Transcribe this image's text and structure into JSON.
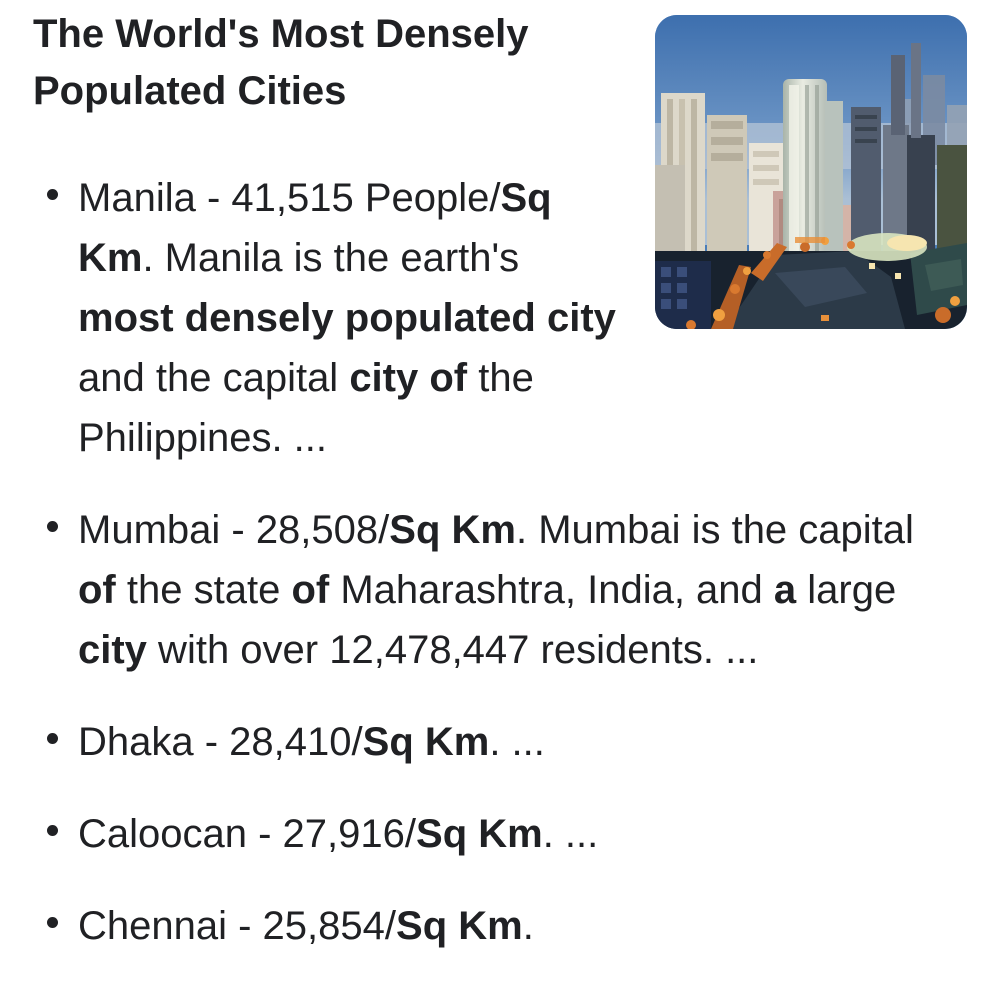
{
  "page": {
    "background": "#ffffff",
    "text_color": "#202124"
  },
  "title": {
    "text": "The World's Most Densely Populated Cities"
  },
  "image": {
    "alt": "Aerial photo of a dense city skyline at dusk",
    "palette": {
      "sky_top": "#3d6fae",
      "sky_mid": "#6f97c6",
      "horizon": "#aabfd5",
      "building_light": "#e3ddcf",
      "building_beige": "#cfc9b8",
      "building_glass": "#c3ccc3",
      "building_mid": "#97a5b8",
      "building_dark": "#3f4a5c",
      "midrise_pink": "#c9a29a",
      "foreground_dark": "#18222e",
      "roof_slate": "#2c3a48",
      "roof_teal": "#2f4a4a",
      "lights_orange": "#d9792f",
      "lights_bright": "#f0a040",
      "lights_warm": "#f6e5b0",
      "lit_field": "#d8e4c0"
    }
  },
  "list": {
    "items": [
      {
        "segments": [
          {
            "text": "Manila - 41,515 People/",
            "bold": false
          },
          {
            "text": "Sq Km",
            "bold": true
          },
          {
            "text": ". Manila is the earth's ",
            "bold": false
          },
          {
            "text": "most densely populated city",
            "bold": true
          },
          {
            "text": " and the capital ",
            "bold": false
          },
          {
            "text": "city of",
            "bold": true
          },
          {
            "text": " the Philippines. ...",
            "bold": false
          }
        ]
      },
      {
        "segments": [
          {
            "text": "Mumbai - 28,508/",
            "bold": false
          },
          {
            "text": "Sq Km",
            "bold": true
          },
          {
            "text": ". Mumbai is the capital ",
            "bold": false
          },
          {
            "text": "of",
            "bold": true
          },
          {
            "text": " the state ",
            "bold": false
          },
          {
            "text": "of",
            "bold": true
          },
          {
            "text": " Maharashtra, India, and ",
            "bold": false
          },
          {
            "text": "a",
            "bold": true
          },
          {
            "text": " large ",
            "bold": false
          },
          {
            "text": "city",
            "bold": true
          },
          {
            "text": " with over 12,478,447 residents. ...",
            "bold": false
          }
        ]
      },
      {
        "segments": [
          {
            "text": "Dhaka - 28,410/",
            "bold": false
          },
          {
            "text": "Sq Km",
            "bold": true
          },
          {
            "text": ". ...",
            "bold": false
          }
        ]
      },
      {
        "segments": [
          {
            "text": "Caloocan - 27,916/",
            "bold": false
          },
          {
            "text": "Sq Km",
            "bold": true
          },
          {
            "text": ". ...",
            "bold": false
          }
        ]
      },
      {
        "segments": [
          {
            "text": "Chennai - 25,854/",
            "bold": false
          },
          {
            "text": "Sq Km",
            "bold": true
          },
          {
            "text": ".",
            "bold": false
          }
        ]
      }
    ]
  }
}
